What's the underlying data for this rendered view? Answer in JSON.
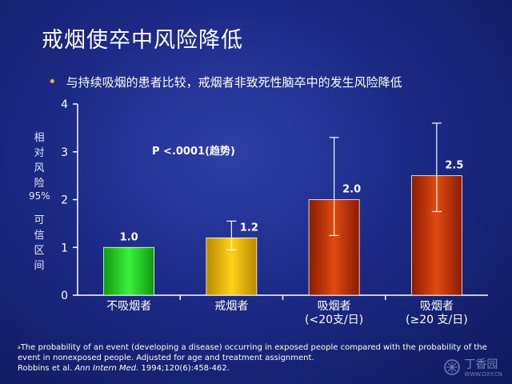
{
  "slide": {
    "title": "戒烟使卒中风险降低",
    "bullet": "与持续吸烟的患者比较，戒烟者非致死性脑卒中的发生风险降低"
  },
  "chart_data": {
    "type": "bar",
    "categories": [
      "不吸烟者",
      "戒烟者",
      "吸烟者\n(<20支/日)",
      "吸烟者\n(≥20 支/日)"
    ],
    "values": [
      1.0,
      1.2,
      2.0,
      2.5
    ],
    "value_labels": [
      "1.0",
      "1.2",
      "2.0",
      "2.5"
    ],
    "error_low": [
      null,
      0.95,
      1.25,
      1.75
    ],
    "error_high": [
      null,
      1.55,
      3.3,
      3.6
    ],
    "yticks": [
      "0",
      "1",
      "2",
      "3",
      "4"
    ],
    "ylim": [
      0,
      4
    ],
    "ylabel_top": [
      "相",
      "对",
      "风",
      "险"
    ],
    "ylabel_mid": "95%",
    "ylabel_bottom": [
      "可",
      "信",
      "区",
      "间"
    ],
    "annotation": "P <.0001(趋势)",
    "colors": [
      "#22cc22",
      "#e0b000",
      "#c03000",
      "#c03000"
    ],
    "grid": false
  },
  "footnote": {
    "sup": "a",
    "line1": "The probability of an event (developing a disease) occurring in exposed people compared with the probability of the event in nonexposed people. Adjusted for age and treatment assignment.",
    "citation_authors": "Robbins et al. ",
    "citation_journal": "Ann Intern Med.",
    "citation_rest": " 1994;120(6):458-462."
  },
  "watermark": {
    "text": "丁香园",
    "url": "WWW.DXY.CN"
  }
}
